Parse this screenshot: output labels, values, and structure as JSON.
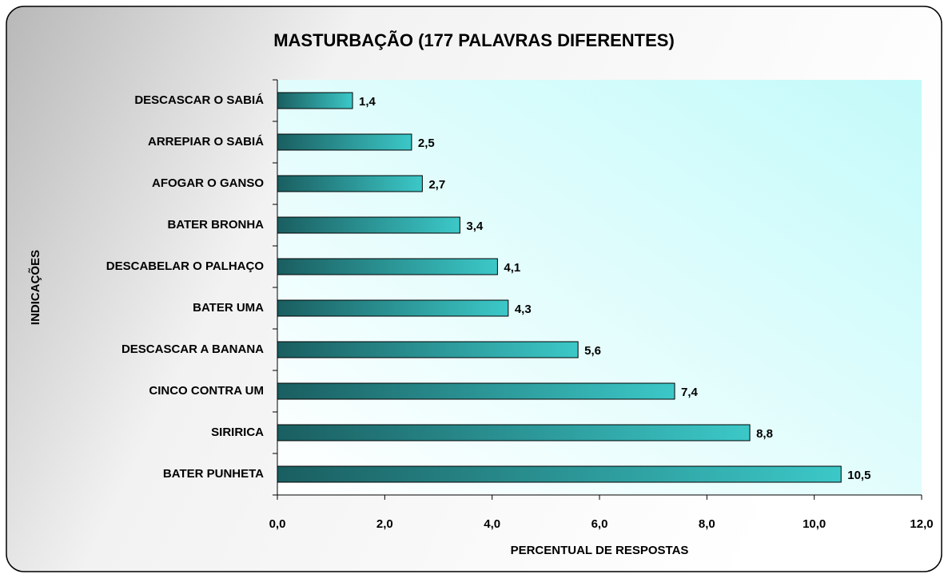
{
  "chart_data": {
    "type": "bar",
    "orientation": "horizontal",
    "title": "MASTURBAÇÃO  (177 PALAVRAS DIFERENTES)",
    "ylabel": "INDICAÇÕES",
    "xlabel": "PERCENTUAL DE RESPOSTAS",
    "categories": [
      "DESCASCAR O SABIÁ",
      "ARREPIAR O SABIÁ",
      "AFOGAR O GANSO",
      "BATER BRONHA",
      "DESCABELAR O PALHAÇO",
      "BATER UMA",
      "DESCASCAR A BANANA",
      "CINCO CONTRA UM",
      "SIRIRICA",
      "BATER PUNHETA"
    ],
    "values": [
      1.4,
      2.5,
      2.7,
      3.4,
      4.1,
      4.3,
      5.6,
      7.4,
      8.8,
      10.5
    ],
    "value_labels": [
      "1,4",
      "2,5",
      "2,7",
      "3,4",
      "4,1",
      "4,3",
      "5,6",
      "7,4",
      "8,8",
      "10,5"
    ],
    "color": "#3cc8c8",
    "xlim": [
      0,
      12
    ],
    "xticks": [
      {
        "value": 0,
        "label": "0,0"
      },
      {
        "value": 2,
        "label": "2,0"
      },
      {
        "value": 4,
        "label": "4,0"
      },
      {
        "value": 6,
        "label": "6,0"
      },
      {
        "value": 8,
        "label": "8,0"
      },
      {
        "value": 10,
        "label": "10,0"
      },
      {
        "value": 12,
        "label": "12,0"
      }
    ],
    "grid": false
  }
}
